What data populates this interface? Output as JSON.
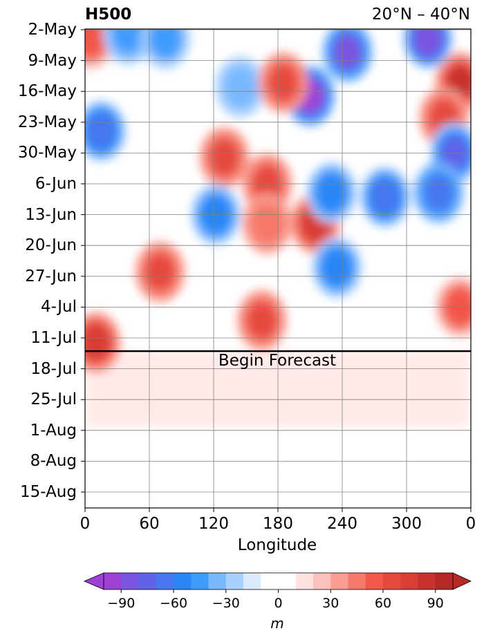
{
  "chart_data": {
    "type": "heatmap",
    "title": "H500",
    "subtitle": "20°N – 40°N",
    "xlabel": "Longitude",
    "ylabel": "",
    "x_ticks": [
      "0",
      "60",
      "120",
      "180",
      "240",
      "300",
      "0"
    ],
    "x_range": [
      0,
      360
    ],
    "y_ticks": [
      "2-May",
      "9-May",
      "16-May",
      "23-May",
      "30-May",
      "6-Jun",
      "13-Jun",
      "20-Jun",
      "27-Jun",
      "4-Jul",
      "11-Jul",
      "18-Jul",
      "25-Jul",
      "1-Aug",
      "8-Aug",
      "15-Aug"
    ],
    "forecast_line_date": "15-Jul",
    "forecast_label": "Begin Forecast",
    "grid": true,
    "colorbar": {
      "levels": [
        -100,
        -90,
        -80,
        -70,
        -60,
        -50,
        -40,
        -30,
        -20,
        -10,
        0,
        10,
        20,
        30,
        40,
        50,
        60,
        70,
        80,
        90,
        100
      ],
      "tick_labels": [
        "−90",
        "−60",
        "−30",
        "0",
        "30",
        "60",
        "90"
      ],
      "tick_values": [
        -90,
        -60,
        -30,
        0,
        30,
        60,
        90
      ],
      "label": "m",
      "colors": [
        "#9e3fd6",
        "#7a55e0",
        "#5f63e8",
        "#4677ee",
        "#2b86f5",
        "#3f9cff",
        "#79b8ff",
        "#a9d1ff",
        "#dbeaff",
        "#ffffff",
        "#ffffff",
        "#ffe2e0",
        "#fcc3bd",
        "#fa9e93",
        "#f6796a",
        "#f2574a",
        "#e64a3e",
        "#d83e35",
        "#c8322c",
        "#b52825"
      ],
      "extend": "both"
    },
    "anomaly_blobs": [
      {
        "lon": 5,
        "date": "4-May",
        "value": 55
      },
      {
        "lon": 350,
        "date": "14-May",
        "value": 80
      },
      {
        "lon": 335,
        "date": "22-May",
        "value": 60
      },
      {
        "lon": 15,
        "date": "25-May",
        "value": -70
      },
      {
        "lon": 345,
        "date": "30-May",
        "value": -75
      },
      {
        "lon": 330,
        "date": "9-Jun",
        "value": -65
      },
      {
        "lon": 40,
        "date": "3-May",
        "value": -50
      },
      {
        "lon": 75,
        "date": "4-May",
        "value": -45
      },
      {
        "lon": 245,
        "date": "7-May",
        "value": -85
      },
      {
        "lon": 320,
        "date": "4-May",
        "value": -90
      },
      {
        "lon": 210,
        "date": "17-May",
        "value": -95
      },
      {
        "lon": 145,
        "date": "15-May",
        "value": -40
      },
      {
        "lon": 185,
        "date": "14-May",
        "value": 65
      },
      {
        "lon": 130,
        "date": "1-Jun",
        "value": 60
      },
      {
        "lon": 170,
        "date": "7-Jun",
        "value": 65
      },
      {
        "lon": 215,
        "date": "16-Jun",
        "value": 75
      },
      {
        "lon": 230,
        "date": "9-Jun",
        "value": -60
      },
      {
        "lon": 280,
        "date": "10-Jun",
        "value": -70
      },
      {
        "lon": 122,
        "date": "14-Jun",
        "value": -55
      },
      {
        "lon": 170,
        "date": "16-Jun",
        "value": 45
      },
      {
        "lon": 70,
        "date": "27-Jun",
        "value": 60
      },
      {
        "lon": 165,
        "date": "8-Jul",
        "value": 65
      },
      {
        "lon": 10,
        "date": "13-Jul",
        "value": 75
      },
      {
        "lon": 350,
        "date": "5-Jul",
        "value": 55
      },
      {
        "lon": 235,
        "date": "26-Jun",
        "value": -55
      }
    ]
  }
}
